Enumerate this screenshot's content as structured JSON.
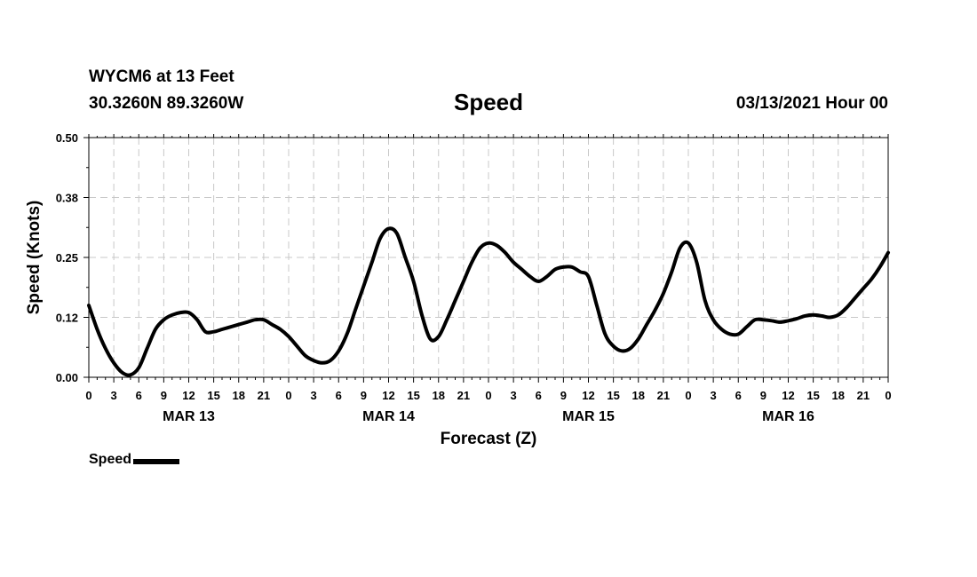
{
  "header": {
    "station": "WYCM6 at 13 Feet",
    "coords": "30.3260N 89.3260W",
    "datetime": "03/13/2021 Hour 00"
  },
  "chart_data": {
    "type": "line",
    "title": "Speed",
    "xlabel": "Forecast (Z)",
    "ylabel": "Speed (Knots)",
    "ylim": [
      0,
      0.5
    ],
    "xlim": [
      0,
      96
    ],
    "grid": true,
    "y_ticks": [
      0,
      0.125,
      0.25,
      0.375,
      0.5
    ],
    "y_tick_labels": [
      "0.00",
      "0.12",
      "0.25",
      "0.38",
      "0.50"
    ],
    "x_ticks": [
      0,
      3,
      6,
      9,
      12,
      15,
      18,
      21,
      24,
      27,
      30,
      33,
      36,
      39,
      42,
      45,
      48,
      51,
      54,
      57,
      60,
      63,
      66,
      69,
      72,
      75,
      78,
      81,
      84,
      87,
      90,
      93,
      96
    ],
    "x_tick_labels": [
      "0",
      "3",
      "6",
      "9",
      "12",
      "15",
      "18",
      "21",
      "0",
      "3",
      "6",
      "9",
      "12",
      "15",
      "18",
      "21",
      "0",
      "3",
      "6",
      "9",
      "12",
      "15",
      "18",
      "21",
      "0",
      "3",
      "6",
      "9",
      "12",
      "15",
      "18",
      "21",
      "0"
    ],
    "day_labels": [
      {
        "x": 12,
        "label": "MAR 13"
      },
      {
        "x": 36,
        "label": "MAR 14"
      },
      {
        "x": 60,
        "label": "MAR 15"
      },
      {
        "x": 84,
        "label": "MAR 16"
      }
    ],
    "legend": {
      "position": "bottom-left",
      "entries": [
        "Speed"
      ]
    },
    "series": [
      {
        "name": "Speed",
        "color": "#000000",
        "x": [
          0,
          1,
          2,
          3,
          4,
          5,
          6,
          7,
          8,
          9,
          10,
          11,
          12,
          13,
          14,
          15,
          16,
          17,
          18,
          19,
          20,
          21,
          22,
          23,
          24,
          25,
          26,
          27,
          28,
          29,
          30,
          31,
          32,
          33,
          34,
          35,
          36,
          37,
          38,
          39,
          40,
          41,
          42,
          43,
          44,
          45,
          46,
          47,
          48,
          49,
          50,
          51,
          52,
          53,
          54,
          55,
          56,
          57,
          58,
          59,
          60,
          61,
          62,
          63,
          64,
          65,
          66,
          67,
          68,
          69,
          70,
          71,
          72,
          73,
          74,
          75,
          76,
          77,
          78,
          79,
          80,
          81,
          82,
          83,
          84,
          85,
          86,
          87,
          88,
          89,
          90,
          91,
          92,
          93,
          94,
          95,
          96
        ],
        "values": [
          0.15,
          0.1,
          0.06,
          0.03,
          0.01,
          0.005,
          0.02,
          0.06,
          0.1,
          0.12,
          0.13,
          0.135,
          0.135,
          0.12,
          0.095,
          0.095,
          0.1,
          0.105,
          0.11,
          0.115,
          0.12,
          0.12,
          0.11,
          0.1,
          0.085,
          0.065,
          0.045,
          0.035,
          0.03,
          0.035,
          0.055,
          0.09,
          0.14,
          0.19,
          0.24,
          0.29,
          0.31,
          0.3,
          0.25,
          0.2,
          0.13,
          0.08,
          0.085,
          0.12,
          0.16,
          0.2,
          0.24,
          0.27,
          0.28,
          0.275,
          0.26,
          0.24,
          0.225,
          0.21,
          0.2,
          0.21,
          0.225,
          0.23,
          0.23,
          0.22,
          0.21,
          0.15,
          0.09,
          0.065,
          0.055,
          0.06,
          0.08,
          0.11,
          0.14,
          0.175,
          0.22,
          0.27,
          0.28,
          0.24,
          0.16,
          0.12,
          0.1,
          0.09,
          0.09,
          0.105,
          0.12,
          0.12,
          0.118,
          0.115,
          0.118,
          0.122,
          0.128,
          0.13,
          0.128,
          0.125,
          0.13,
          0.145,
          0.165,
          0.185,
          0.205,
          0.23,
          0.26
        ]
      }
    ]
  }
}
